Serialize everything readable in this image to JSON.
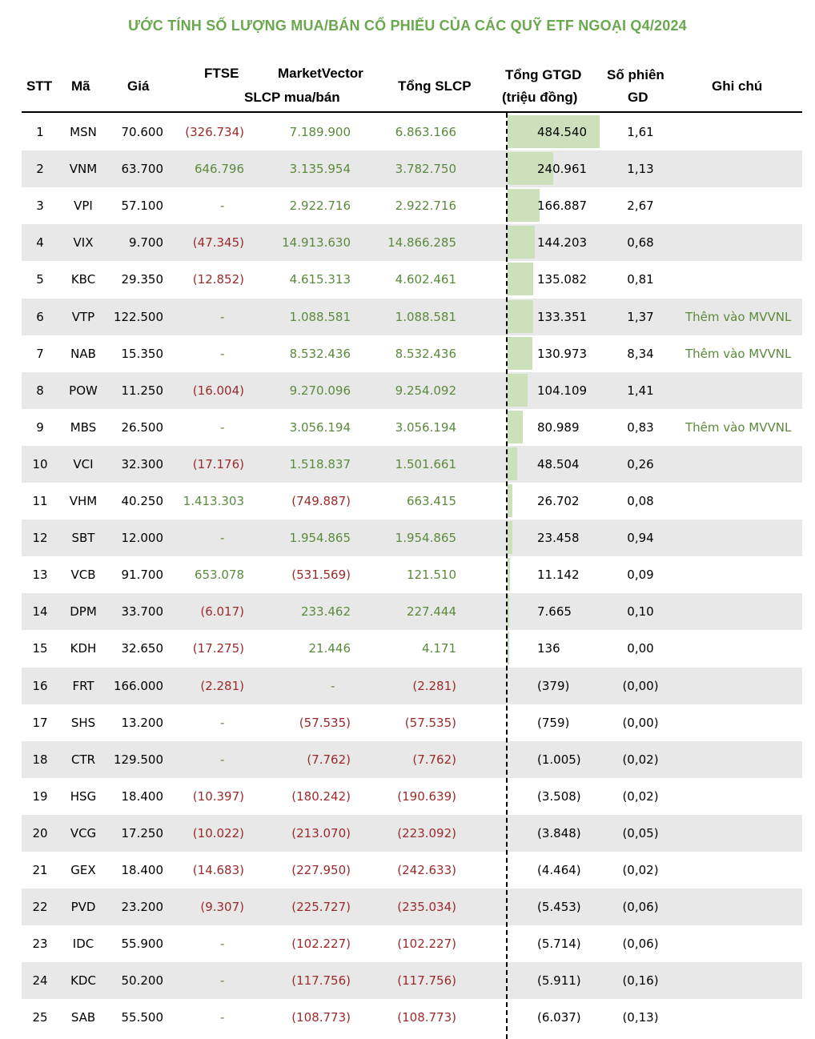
{
  "title": "ƯỚC TÍNH SỐ LƯỢNG MUA/BÁN CỔ PHIẾU CỦA CÁC QUỸ ETF NGOẠI Q4/2024",
  "headers": {
    "stt": "STT",
    "ma": "Mã",
    "gia": "Giá",
    "ftse": "FTSE",
    "mv": "MarketVector",
    "slcp": "SLCP mua/bán",
    "tong_slcp": "Tổng SLCP",
    "gtgd1": "Tổng GTGD",
    "gtgd2": "(triệu đồng)",
    "phien1": "Số phiên",
    "phien2": "GD",
    "ghichu": "Ghi chú"
  },
  "colors": {
    "title": "#6aa84f",
    "positive": "#5b8a3c",
    "negative": "#9b2a2a",
    "bar": "#cce0bb",
    "stripe": "#e8e8e8"
  },
  "rows": [
    {
      "stt": "1",
      "ma": "MSN",
      "gia": "70.600",
      "ftse": "(326.734)",
      "mv": "7.189.900",
      "tong": "6.863.166",
      "gtgd": "484.540",
      "gtgd_value": 484540,
      "phien": "1,61",
      "note": ""
    },
    {
      "stt": "2",
      "ma": "VNM",
      "gia": "63.700",
      "ftse": "646.796",
      "mv": "3.135.954",
      "tong": "3.782.750",
      "gtgd": "240.961",
      "gtgd_value": 240961,
      "phien": "1,13",
      "note": ""
    },
    {
      "stt": "3",
      "ma": "VPI",
      "gia": "57.100",
      "ftse": "-",
      "mv": "2.922.716",
      "tong": "2.922.716",
      "gtgd": "166.887",
      "gtgd_value": 166887,
      "phien": "2,67",
      "note": ""
    },
    {
      "stt": "4",
      "ma": "VIX",
      "gia": "9.700",
      "ftse": "(47.345)",
      "mv": "14.913.630",
      "tong": "14.866.285",
      "gtgd": "144.203",
      "gtgd_value": 144203,
      "phien": "0,68",
      "note": ""
    },
    {
      "stt": "5",
      "ma": "KBC",
      "gia": "29.350",
      "ftse": "(12.852)",
      "mv": "4.615.313",
      "tong": "4.602.461",
      "gtgd": "135.082",
      "gtgd_value": 135082,
      "phien": "0,81",
      "note": ""
    },
    {
      "stt": "6",
      "ma": "VTP",
      "gia": "122.500",
      "ftse": "-",
      "mv": "1.088.581",
      "tong": "1.088.581",
      "gtgd": "133.351",
      "gtgd_value": 133351,
      "phien": "1,37",
      "note": "Thêm vào MVVNL"
    },
    {
      "stt": "7",
      "ma": "NAB",
      "gia": "15.350",
      "ftse": "-",
      "mv": "8.532.436",
      "tong": "8.532.436",
      "gtgd": "130.973",
      "gtgd_value": 130973,
      "phien": "8,34",
      "note": "Thêm vào MVVNL"
    },
    {
      "stt": "8",
      "ma": "POW",
      "gia": "11.250",
      "ftse": "(16.004)",
      "mv": "9.270.096",
      "tong": "9.254.092",
      "gtgd": "104.109",
      "gtgd_value": 104109,
      "phien": "1,41",
      "note": ""
    },
    {
      "stt": "9",
      "ma": "MBS",
      "gia": "26.500",
      "ftse": "-",
      "mv": "3.056.194",
      "tong": "3.056.194",
      "gtgd": "80.989",
      "gtgd_value": 80989,
      "phien": "0,83",
      "note": "Thêm vào MVVNL"
    },
    {
      "stt": "10",
      "ma": "VCI",
      "gia": "32.300",
      "ftse": "(17.176)",
      "mv": "1.518.837",
      "tong": "1.501.661",
      "gtgd": "48.504",
      "gtgd_value": 48504,
      "phien": "0,26",
      "note": ""
    },
    {
      "stt": "11",
      "ma": "VHM",
      "gia": "40.250",
      "ftse": "1.413.303",
      "mv": "(749.887)",
      "tong": "663.415",
      "gtgd": "26.702",
      "gtgd_value": 26702,
      "phien": "0,08",
      "note": ""
    },
    {
      "stt": "12",
      "ma": "SBT",
      "gia": "12.000",
      "ftse": "-",
      "mv": "1.954.865",
      "tong": "1.954.865",
      "gtgd": "23.458",
      "gtgd_value": 23458,
      "phien": "0,94",
      "note": ""
    },
    {
      "stt": "13",
      "ma": "VCB",
      "gia": "91.700",
      "ftse": "653.078",
      "mv": "(531.569)",
      "tong": "121.510",
      "gtgd": "11.142",
      "gtgd_value": 11142,
      "phien": "0,09",
      "note": ""
    },
    {
      "stt": "14",
      "ma": "DPM",
      "gia": "33.700",
      "ftse": "(6.017)",
      "mv": "233.462",
      "tong": "227.444",
      "gtgd": "7.665",
      "gtgd_value": 7665,
      "phien": "0,10",
      "note": ""
    },
    {
      "stt": "15",
      "ma": "KDH",
      "gia": "32.650",
      "ftse": "(17.275)",
      "mv": "21.446",
      "tong": "4.171",
      "gtgd": "136",
      "gtgd_value": 136,
      "phien": "0,00",
      "note": ""
    },
    {
      "stt": "16",
      "ma": "FRT",
      "gia": "166.000",
      "ftse": "(2.281)",
      "mv": "-",
      "tong": "(2.281)",
      "gtgd": "(379)",
      "gtgd_value": -379,
      "phien": "(0,00)",
      "note": ""
    },
    {
      "stt": "17",
      "ma": "SHS",
      "gia": "13.200",
      "ftse": "-",
      "mv": "(57.535)",
      "tong": "(57.535)",
      "gtgd": "(759)",
      "gtgd_value": -759,
      "phien": "(0,00)",
      "note": ""
    },
    {
      "stt": "18",
      "ma": "CTR",
      "gia": "129.500",
      "ftse": "-",
      "mv": "(7.762)",
      "tong": "(7.762)",
      "gtgd": "(1.005)",
      "gtgd_value": -1005,
      "phien": "(0,02)",
      "note": ""
    },
    {
      "stt": "19",
      "ma": "HSG",
      "gia": "18.400",
      "ftse": "(10.397)",
      "mv": "(180.242)",
      "tong": "(190.639)",
      "gtgd": "(3.508)",
      "gtgd_value": -3508,
      "phien": "(0,02)",
      "note": ""
    },
    {
      "stt": "20",
      "ma": "VCG",
      "gia": "17.250",
      "ftse": "(10.022)",
      "mv": "(213.070)",
      "tong": "(223.092)",
      "gtgd": "(3.848)",
      "gtgd_value": -3848,
      "phien": "(0,05)",
      "note": ""
    },
    {
      "stt": "21",
      "ma": "GEX",
      "gia": "18.400",
      "ftse": "(14.683)",
      "mv": "(227.950)",
      "tong": "(242.633)",
      "gtgd": "(4.464)",
      "gtgd_value": -4464,
      "phien": "(0,02)",
      "note": ""
    },
    {
      "stt": "22",
      "ma": "PVD",
      "gia": "23.200",
      "ftse": "(9.307)",
      "mv": "(225.727)",
      "tong": "(235.034)",
      "gtgd": "(5.453)",
      "gtgd_value": -5453,
      "phien": "(0,06)",
      "note": ""
    },
    {
      "stt": "23",
      "ma": "IDC",
      "gia": "55.900",
      "ftse": "-",
      "mv": "(102.227)",
      "tong": "(102.227)",
      "gtgd": "(5.714)",
      "gtgd_value": -5714,
      "phien": "(0,06)",
      "note": ""
    },
    {
      "stt": "24",
      "ma": "KDC",
      "gia": "50.200",
      "ftse": "-",
      "mv": "(117.756)",
      "tong": "(117.756)",
      "gtgd": "(5.911)",
      "gtgd_value": -5911,
      "phien": "(0,16)",
      "note": ""
    },
    {
      "stt": "25",
      "ma": "SAB",
      "gia": "55.500",
      "ftse": "-",
      "mv": "(108.773)",
      "tong": "(108.773)",
      "gtgd": "(6.037)",
      "gtgd_value": -6037,
      "phien": "(0,13)",
      "note": ""
    }
  ]
}
